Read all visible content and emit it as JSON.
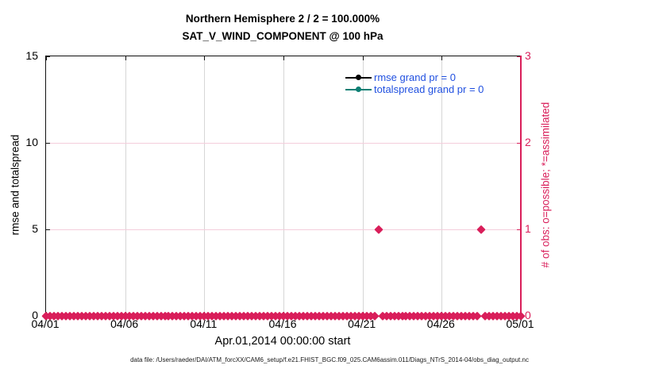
{
  "title": {
    "line1": "Northern Hemisphere 2 / 2 = 100.000%",
    "line2": "SAT_V_WIND_COMPONENT @ 100 hPa"
  },
  "footer": {
    "data_file_note": "data file: /Users/raeder/DAI/ATM_forcXX/CAM6_setup/f.e21.FHIST_BGC.f09_025.CAM6assim.011/Diags_NTrS_2014-04/obs_diag_output.nc"
  },
  "colors": {
    "obs": "#d91e5a",
    "obs_gridline": "#f4cddb",
    "gray_gridline": "#d6d6d6",
    "axis_black": "#111111",
    "legend_text_blue": "#2050e0",
    "rmse": "#000000",
    "totalspread": "#0e7f74"
  },
  "chart_data": {
    "type": "line",
    "title": "Northern Hemisphere 2 / 2 = 100.000% — SAT_V_WIND_COMPONENT @ 100 hPa",
    "xlabel": "Apr.01,2014 00:00:00 start",
    "ylabel_left": "rmse and totalspread",
    "ylabel_right": "# of obs: o=possible; *=assimilated",
    "x_tick_labels": [
      "04/01",
      "04/06",
      "04/11",
      "04/16",
      "04/21",
      "04/26",
      "05/01"
    ],
    "x_tick_days": [
      0,
      5,
      10,
      15,
      20,
      25,
      30
    ],
    "x_range_days": [
      0,
      30
    ],
    "y_left": {
      "ticks": [
        0,
        5,
        10,
        15
      ],
      "range": [
        0,
        15
      ]
    },
    "y_right": {
      "ticks": [
        0,
        1,
        2,
        3
      ],
      "range": [
        0,
        3
      ]
    },
    "grid": {
      "vertical_at_days": [
        5,
        10,
        15,
        20,
        25
      ],
      "horizontal_at_right_values": [
        1,
        2
      ]
    },
    "legend": {
      "box": false,
      "position": "upper center-right inside plot",
      "entries": [
        {
          "label": "rmse grand pr = 0",
          "color_key": "rmse"
        },
        {
          "label": "totalspread grand pr = 0",
          "color_key": "totalspread"
        }
      ]
    },
    "series": [
      {
        "name": "number of obs (possible and assimilated)",
        "axis": "right",
        "marker": "asterisk-diamond",
        "color_key": "obs",
        "sampling": {
          "start_day": 0,
          "end_day": 30,
          "step_days": 0.25,
          "default_value": 0
        },
        "exceptions": [
          {
            "day": 21,
            "value": 1
          },
          {
            "day": 27.5,
            "value": 1
          }
        ]
      },
      {
        "name": "rmse grand pr = 0",
        "axis": "left",
        "color_key": "rmse",
        "points": []
      },
      {
        "name": "totalspread grand pr = 0",
        "axis": "left",
        "color_key": "totalspread",
        "points": []
      }
    ]
  }
}
